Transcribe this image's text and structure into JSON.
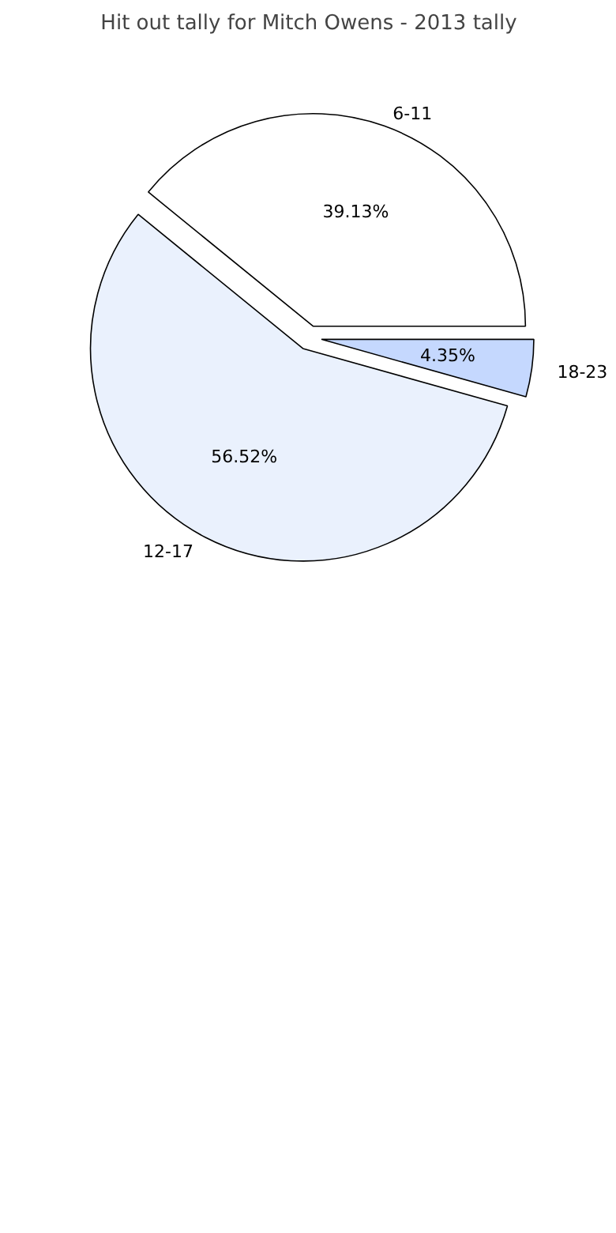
{
  "chart_data": {
    "type": "pie",
    "title": "Hit out tally for Mitch Owens - 2013 tally",
    "categories": [
      "6-11",
      "12-17",
      "18-23"
    ],
    "values": [
      39.13,
      56.52,
      4.35
    ],
    "colors": [
      "#ffffff",
      "#eaf1fd",
      "#c5d8fe"
    ],
    "value_labels": [
      "39.13%",
      "56.52%",
      "4.35%"
    ]
  }
}
